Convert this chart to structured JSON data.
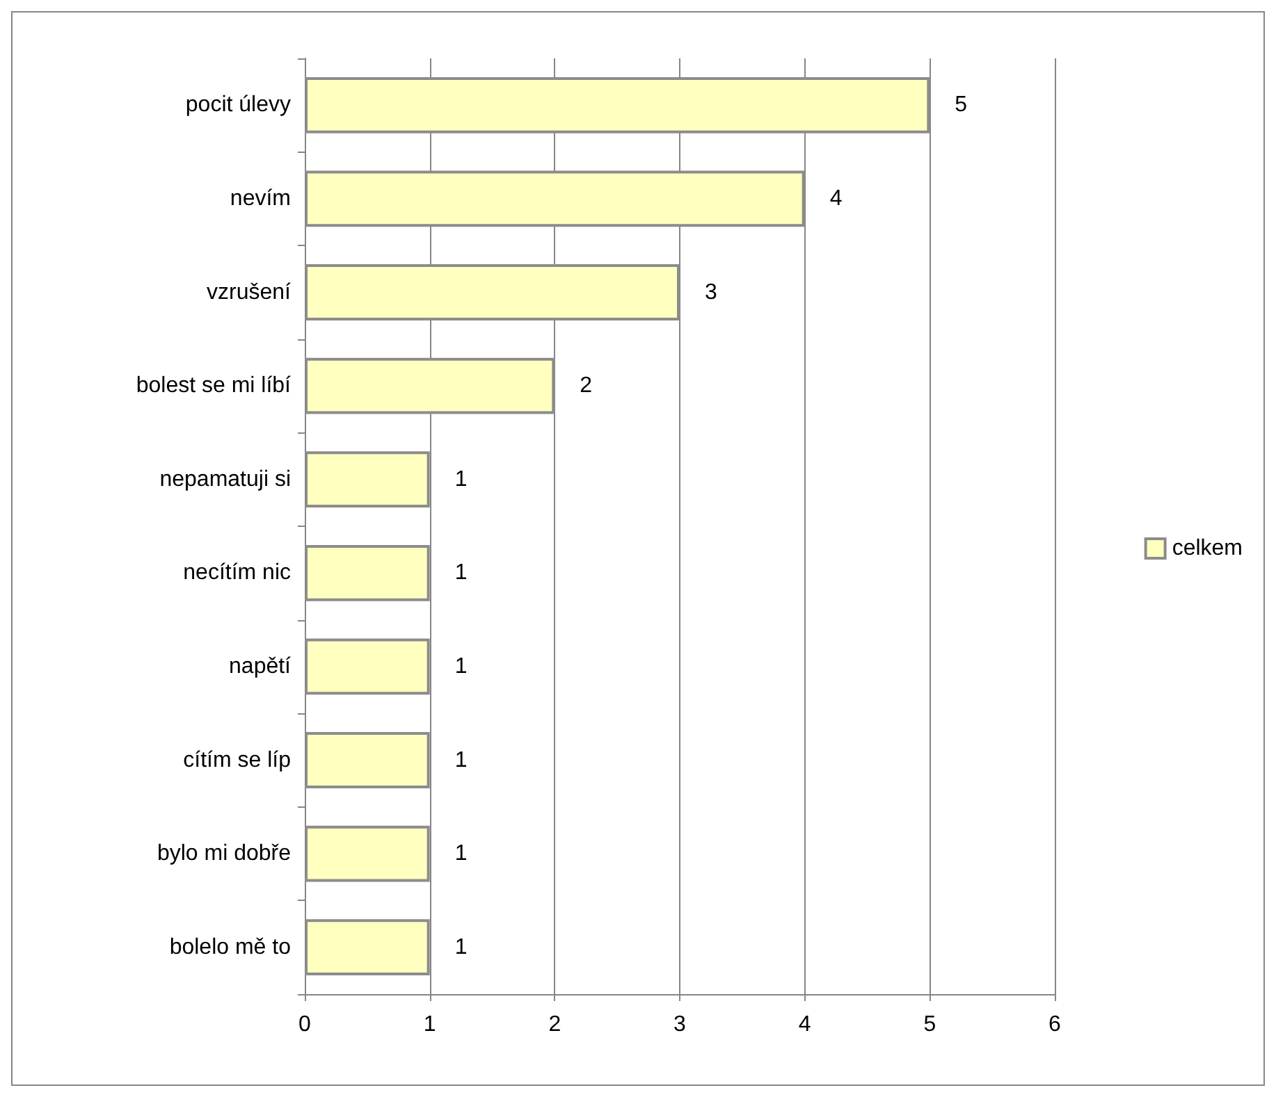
{
  "chart_data": {
    "type": "bar",
    "orientation": "horizontal",
    "categories": [
      "pocit úlevy",
      "nevím",
      "vzrušení",
      "bolest se mi líbí",
      "nepamatuji si",
      "necítím nic",
      "napětí",
      "cítím se líp",
      "bylo mi dobře",
      "bolelo mě to"
    ],
    "series": [
      {
        "name": "celkem",
        "color": "#ffffc0",
        "values": [
          5,
          4,
          3,
          2,
          1,
          1,
          1,
          1,
          1,
          1
        ]
      }
    ],
    "xlim": [
      0,
      6
    ],
    "xticks": [
      0,
      1,
      2,
      3,
      4,
      5,
      6
    ],
    "grid": "x",
    "legend": "right",
    "data_labels": true
  }
}
